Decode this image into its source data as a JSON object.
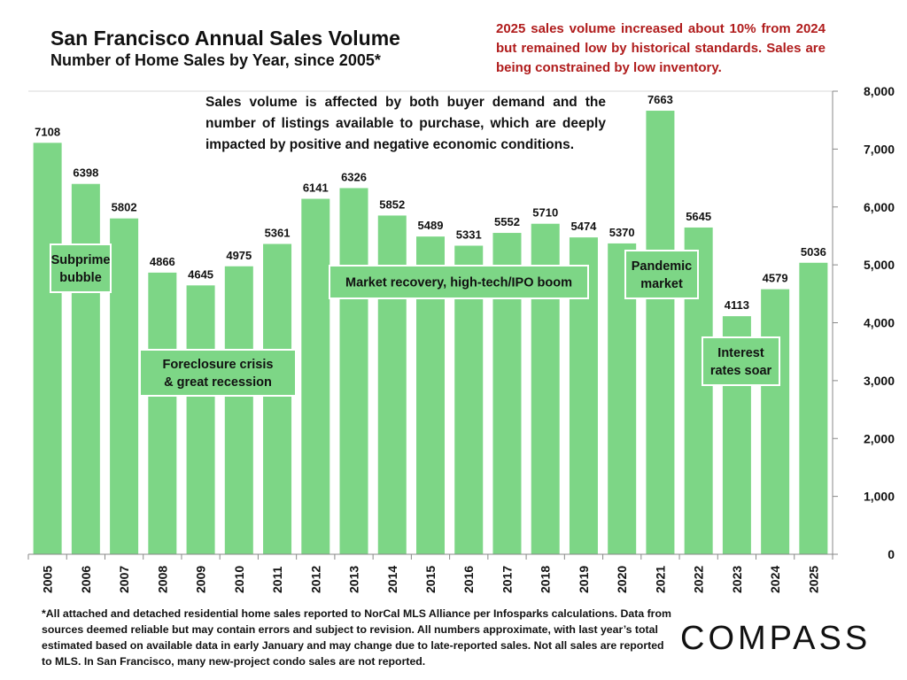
{
  "header": {
    "title": "San Francisco Annual Sales Volume",
    "subtitle": "Number of Home Sales by Year, since 2005*",
    "callout": "2025 sales volume increased about 10% from 2024 but remained low by historical standards. Sales are being constrained by low inventory."
  },
  "note": "Sales volume is affected by both buyer demand and the number of listings available to purchase, which are deeply impacted by positive and negative economic conditions.",
  "footnote": "*All attached and detached residential home sales reported to NorCal MLS Alliance per Infosparks calculations. Data from sources deemed reliable but may contain errors and subject to revision. All numbers approximate, with last year’s total estimated based on available data in early January and may change due to late-reported sales. Not all sales are reported to MLS. In San Francisco, many new-project condo sales are not reported.",
  "logo": "COMPASS",
  "colors": {
    "bar": "#7dd686",
    "callout": "#b01c1c"
  },
  "chart_data": {
    "type": "bar",
    "title": "San Francisco Annual Sales Volume",
    "categories": [
      "2005",
      "2006",
      "2007",
      "2008",
      "2009",
      "2010",
      "2011",
      "2012",
      "2013",
      "2014",
      "2015",
      "2016",
      "2017",
      "2018",
      "2019",
      "2020",
      "2021",
      "2022",
      "2023",
      "2024",
      "2025"
    ],
    "values": [
      7108,
      6398,
      5802,
      4866,
      4645,
      4975,
      5361,
      6141,
      6326,
      5852,
      5489,
      5331,
      5552,
      5710,
      5474,
      5370,
      7663,
      5645,
      4113,
      4579,
      5036
    ],
    "ylim": [
      0,
      8000
    ],
    "yticks": [
      "0",
      "1,000",
      "2,000",
      "3,000",
      "4,000",
      "5,000",
      "6,000",
      "7,000",
      "8,000"
    ],
    "yaxis_position": "right",
    "grid": false,
    "annotations": [
      {
        "lines": [
          "Subprime",
          "bubble"
        ]
      },
      {
        "lines": [
          "Foreclosure crisis",
          "& great recession"
        ]
      },
      {
        "lines": [
          "Market recovery, high-tech/IPO boom"
        ]
      },
      {
        "lines": [
          "Pandemic",
          "market"
        ]
      },
      {
        "lines": [
          "Interest",
          "rates soar"
        ]
      }
    ]
  }
}
